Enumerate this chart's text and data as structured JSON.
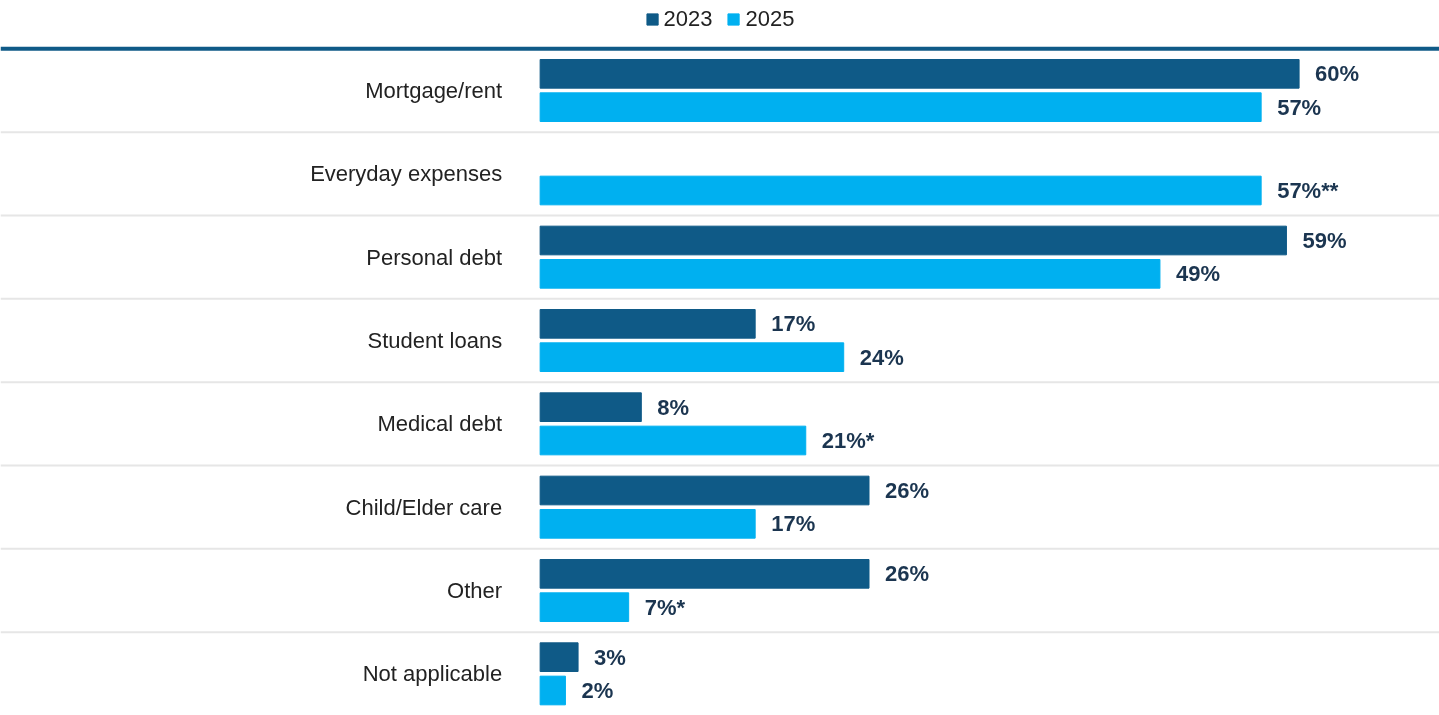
{
  "chart_data": {
    "type": "bar",
    "orientation": "horizontal",
    "categories": [
      "Mortgage/rent",
      "Everyday expenses",
      "Personal debt",
      "Student loans",
      "Medical debt",
      "Child/Elder care",
      "Other",
      "Not applicable"
    ],
    "series": [
      {
        "name": "2023",
        "color": "#0f5a87",
        "values": [
          60,
          null,
          59,
          17,
          8,
          26,
          26,
          3
        ],
        "value_labels": [
          "60%",
          null,
          "59%",
          "17%",
          "8%",
          "26%",
          "26%",
          "3%"
        ]
      },
      {
        "name": "2025",
        "color": "#00b0f0",
        "values": [
          57,
          57,
          49,
          24,
          21,
          17,
          7,
          2
        ],
        "value_labels": [
          "57%",
          "57%**",
          "49%",
          "24%",
          "21%*",
          "17%",
          "7%*",
          "2%"
        ]
      }
    ],
    "legend": "top",
    "grid": "y"
  }
}
